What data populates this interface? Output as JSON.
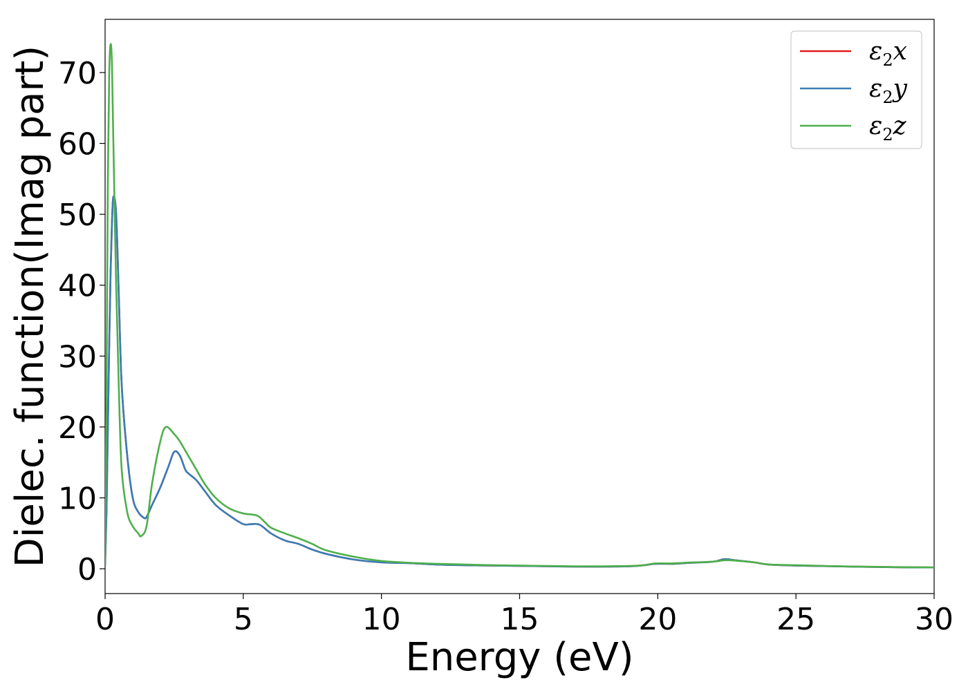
{
  "chart_data": {
    "type": "line",
    "title": "",
    "xlabel": "Energy (eV)",
    "ylabel": "Dielec. function(Imag part)",
    "xlim": [
      0,
      30
    ],
    "ylim": [
      -3.5,
      77.5
    ],
    "xticks": [
      0,
      5,
      10,
      15,
      20,
      25,
      30
    ],
    "yticks": [
      0,
      10,
      20,
      30,
      40,
      50,
      60,
      70
    ],
    "grid": false,
    "legend_position": "top-right",
    "series": [
      {
        "name": "ε₂x",
        "legend_base": "ε",
        "legend_sub": "2",
        "legend_var": "x",
        "color": "#e41a1c",
        "x": [
          0,
          0.05,
          0.1,
          0.15,
          0.2,
          0.25,
          0.3,
          0.4,
          0.5,
          0.6,
          0.8,
          1.0,
          1.2,
          1.4,
          1.5,
          1.7,
          2.0,
          2.3,
          2.5,
          2.7,
          2.9,
          3.0,
          3.3,
          3.6,
          4.0,
          4.5,
          5.0,
          5.3,
          5.6,
          6.0,
          6.5,
          7.0,
          7.5,
          8.0,
          9.0,
          10.0,
          11.0,
          12.0,
          13.0,
          14.0,
          15.0,
          16.0,
          17.0,
          18.0,
          19.0,
          19.5,
          19.9,
          20.5,
          21.0,
          22.0,
          22.4,
          22.8,
          23.5,
          24.0,
          25.0,
          26.0,
          27.0,
          28.0,
          29.0,
          30.0
        ],
        "y": [
          0.5,
          8,
          20,
          32,
          42,
          49,
          52.5,
          50,
          38,
          26,
          16,
          10,
          8,
          7.2,
          7.3,
          9,
          11.5,
          14.5,
          16.5,
          16,
          14,
          13.5,
          12.5,
          11,
          9,
          7.5,
          6.3,
          6.3,
          6.2,
          5,
          4,
          3.5,
          2.7,
          2.1,
          1.3,
          0.9,
          0.8,
          0.6,
          0.5,
          0.45,
          0.4,
          0.35,
          0.3,
          0.3,
          0.35,
          0.5,
          0.7,
          0.7,
          0.8,
          1.0,
          1.35,
          1.2,
          0.9,
          0.6,
          0.45,
          0.38,
          0.3,
          0.25,
          0.2,
          0.18
        ]
      },
      {
        "name": "ε₂y",
        "legend_base": "ε",
        "legend_sub": "2",
        "legend_var": "y",
        "color": "#377eb8",
        "x": [
          0,
          0.05,
          0.1,
          0.15,
          0.2,
          0.25,
          0.3,
          0.4,
          0.5,
          0.6,
          0.8,
          1.0,
          1.2,
          1.4,
          1.5,
          1.7,
          2.0,
          2.3,
          2.5,
          2.7,
          2.9,
          3.0,
          3.3,
          3.6,
          4.0,
          4.5,
          5.0,
          5.3,
          5.6,
          6.0,
          6.5,
          7.0,
          7.5,
          8.0,
          9.0,
          10.0,
          11.0,
          12.0,
          13.0,
          14.0,
          15.0,
          16.0,
          17.0,
          18.0,
          19.0,
          19.5,
          19.9,
          20.5,
          21.0,
          22.0,
          22.4,
          22.8,
          23.5,
          24.0,
          25.0,
          26.0,
          27.0,
          28.0,
          29.0,
          30.0
        ],
        "y": [
          0.5,
          8,
          20,
          32,
          42,
          49,
          52.5,
          50,
          38,
          26,
          16,
          10,
          8,
          7.2,
          7.3,
          9,
          11.5,
          14.5,
          16.5,
          16,
          14,
          13.5,
          12.5,
          11,
          9,
          7.5,
          6.3,
          6.3,
          6.2,
          5,
          4,
          3.5,
          2.7,
          2.1,
          1.3,
          0.9,
          0.8,
          0.6,
          0.5,
          0.45,
          0.4,
          0.35,
          0.3,
          0.3,
          0.35,
          0.5,
          0.7,
          0.7,
          0.8,
          1.0,
          1.35,
          1.2,
          0.9,
          0.6,
          0.45,
          0.38,
          0.3,
          0.25,
          0.2,
          0.18
        ]
      },
      {
        "name": "ε₂z",
        "legend_base": "ε",
        "legend_sub": "2",
        "legend_var": "z",
        "color": "#4daf4a",
        "x": [
          0,
          0.05,
          0.1,
          0.15,
          0.2,
          0.25,
          0.3,
          0.4,
          0.5,
          0.6,
          0.8,
          1.0,
          1.2,
          1.3,
          1.5,
          1.7,
          2.0,
          2.2,
          2.5,
          2.7,
          3.0,
          3.3,
          3.6,
          4.0,
          4.5,
          5.0,
          5.5,
          5.8,
          6.0,
          6.5,
          7.0,
          7.5,
          8.0,
          9.0,
          10.0,
          11.0,
          12.0,
          13.0,
          14.0,
          15.0,
          16.0,
          17.0,
          18.0,
          19.0,
          19.5,
          19.9,
          20.5,
          21.0,
          22.0,
          22.4,
          22.8,
          23.5,
          24.0,
          25.0,
          26.0,
          27.0,
          28.0,
          29.0,
          30.0
        ],
        "y": [
          0.5,
          25,
          55,
          70,
          74,
          71,
          60,
          40,
          25,
          14,
          8,
          6,
          5,
          4.6,
          6,
          12,
          18,
          20,
          19,
          18,
          16,
          14,
          12,
          10,
          8.5,
          7.8,
          7.5,
          6.5,
          5.8,
          5,
          4.3,
          3.5,
          2.6,
          1.7,
          1.1,
          0.85,
          0.7,
          0.6,
          0.5,
          0.45,
          0.4,
          0.35,
          0.35,
          0.4,
          0.5,
          0.75,
          0.75,
          0.85,
          1.0,
          1.2,
          1.15,
          0.9,
          0.6,
          0.5,
          0.4,
          0.32,
          0.27,
          0.22,
          0.2
        ]
      }
    ]
  }
}
